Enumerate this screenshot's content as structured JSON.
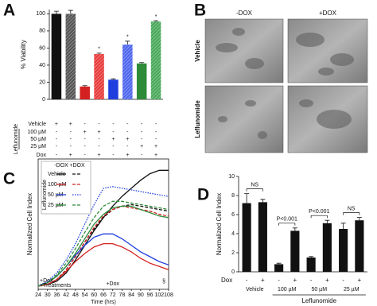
{
  "panel_labels": [
    "A",
    "B",
    "C",
    "D"
  ],
  "panel_b": {
    "columns": [
      "-DOX",
      "+DOX"
    ],
    "rows": [
      "Vehicle",
      "Leflunomide"
    ]
  },
  "chart_data": [
    {
      "type": "bar",
      "ylabel": "% Viability",
      "ylim": [
        0,
        105
      ],
      "yticks": [
        0,
        20,
        40,
        60,
        80,
        100
      ],
      "values": [
        100,
        100,
        15,
        53,
        23,
        64,
        42,
        91
      ],
      "errors": [
        3,
        4,
        1,
        1,
        1,
        4,
        1,
        1
      ],
      "colors": [
        "#111111",
        "#555555",
        "#d42020",
        "#e83c3c",
        "#1f3ee0",
        "#4f66ee",
        "#2e8b3a",
        "#4aa85a"
      ],
      "hatch": [
        false,
        true,
        false,
        true,
        false,
        true,
        false,
        true
      ],
      "significance": {
        "label": "*",
        "bars": [
          3,
          5,
          7
        ]
      },
      "table": {
        "row_labels": [
          "Vehicle",
          "100 µM",
          "50 µM",
          "25 µM",
          "Dox"
        ],
        "group_label": "Leflunomide",
        "rows": [
          [
            "+",
            "+",
            "-",
            "-",
            "-",
            "-",
            "-",
            "-"
          ],
          [
            "-",
            "-",
            "+",
            "+",
            "-",
            "-",
            "-",
            "-"
          ],
          [
            "-",
            "-",
            "-",
            "-",
            "+",
            "+",
            "-",
            "-"
          ],
          [
            "-",
            "-",
            "-",
            "-",
            "-",
            "-",
            "+",
            "+"
          ],
          [
            "-",
            "+",
            "-",
            "+",
            "-",
            "+",
            "-",
            "+"
          ]
        ]
      }
    },
    {
      "type": "line",
      "ylabel": "Normalized Cell Index",
      "xlabel": "Time (hrs)",
      "x": [
        24,
        30,
        36,
        42,
        48,
        54,
        60,
        66,
        72,
        78,
        84,
        90,
        96,
        102,
        108
      ],
      "xlim": [
        24,
        108
      ],
      "xticks": [
        24,
        30,
        36,
        42,
        48,
        54,
        60,
        66,
        72,
        78,
        84,
        90,
        96,
        102,
        108
      ],
      "ylim": [
        0,
        8
      ],
      "series": [
        {
          "color": "#111111",
          "style": "solid",
          "values": [
            0.2,
            0.3,
            0.5,
            1.0,
            1.8,
            2.7,
            3.6,
            4.4,
            5.1,
            5.7,
            6.2,
            6.7,
            7.1,
            7.3,
            7.3
          ]
        },
        {
          "color": "#111111",
          "style": "dashed",
          "values": [
            0.2,
            0.3,
            0.6,
            1.2,
            2.0,
            2.9,
            3.7,
            4.4,
            4.9,
            5.1,
            5.2,
            5.1,
            5.0,
            4.9,
            4.8
          ]
        },
        {
          "color": "#d42020",
          "style": "solid",
          "values": [
            0.2,
            0.3,
            0.6,
            1.1,
            1.7,
            2.2,
            2.6,
            2.8,
            2.8,
            2.6,
            2.3,
            1.9,
            1.6,
            1.4,
            1.2
          ]
        },
        {
          "color": "#d42020",
          "style": "dashed",
          "values": [
            0.2,
            0.3,
            0.6,
            1.2,
            2.0,
            2.9,
            3.8,
            4.5,
            4.9,
            5.1,
            5.0,
            4.9,
            4.8,
            4.6,
            4.5
          ]
        },
        {
          "color": "#1f3ee0",
          "style": "solid",
          "values": [
            0.2,
            0.4,
            0.8,
            1.4,
            2.1,
            2.7,
            3.2,
            3.4,
            3.4,
            3.1,
            2.7,
            2.3,
            2.0,
            1.7,
            1.5
          ]
        },
        {
          "color": "#1f3ee0",
          "style": "dotted",
          "values": [
            0.2,
            0.5,
            1.0,
            1.8,
            2.8,
            4.0,
            5.2,
            6.2,
            6.3,
            6.2,
            6.1,
            6.0,
            5.9,
            5.8,
            5.7
          ]
        },
        {
          "color": "#2e8b3a",
          "style": "solid",
          "values": [
            0.2,
            0.4,
            0.8,
            1.4,
            2.2,
            3.1,
            4.0,
            4.6,
            5.0,
            5.1,
            5.1,
            4.9,
            4.7,
            4.5,
            4.4
          ]
        },
        {
          "color": "#2e8b3a",
          "style": "dashed",
          "values": [
            0.2,
            0.4,
            0.9,
            1.6,
            2.5,
            3.5,
            4.4,
            5.1,
            5.4,
            5.4,
            5.3,
            5.2,
            5.1,
            5.0,
            4.9
          ]
        }
      ],
      "legend": {
        "columns": [
          "-DOX",
          "+DOX"
        ],
        "rows": [
          "Vehicle",
          "100 µM",
          "50 µM",
          "25 µM"
        ],
        "group_label": "Leflunomide"
      },
      "annotations": [
        "+Dox,",
        "+Treatments",
        "+Dox",
        "§"
      ]
    },
    {
      "type": "bar",
      "ylabel": "Normalized Cell Index",
      "ylim": [
        0,
        10
      ],
      "yticks": [
        0,
        2,
        4,
        6,
        8,
        10
      ],
      "values": [
        7.2,
        7.3,
        0.8,
        4.3,
        1.5,
        5.1,
        4.5,
        5.4
      ],
      "errors": [
        1.0,
        0.3,
        0.1,
        0.3,
        0.1,
        0.3,
        0.6,
        0.3
      ],
      "color": "#111111",
      "dox_label": "Dox",
      "dox": [
        "-",
        "+",
        "-",
        "+",
        "-",
        "+",
        "-",
        "+"
      ],
      "groups": [
        "Vehicle",
        "100 µM",
        "50 µM",
        "25 µM"
      ],
      "group_label": "Leflunomide",
      "comparisons": [
        "NS",
        "P<0.001",
        "P<0.001",
        "NS"
      ]
    }
  ]
}
